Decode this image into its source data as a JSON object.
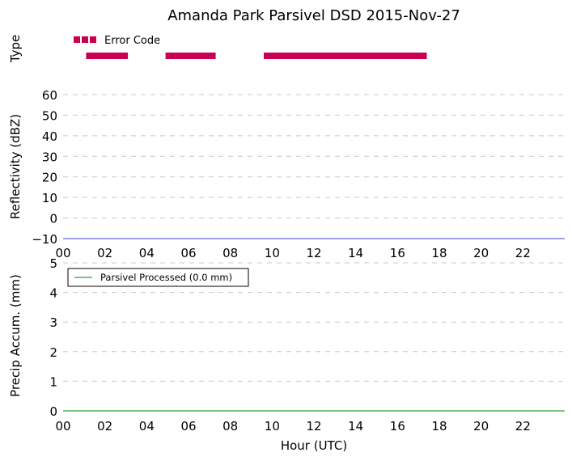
{
  "chart_data": [
    {
      "type": "bar",
      "panel": "type",
      "title": "Amanda Park Parsivel DSD 2015-Nov-27",
      "ylabel": "Type",
      "legend": {
        "label": "Error Code",
        "placement": "top-left"
      },
      "series": [
        {
          "name": "Error Code",
          "color": "#c8004f",
          "segments": [
            [
              1.1,
              3.1
            ],
            [
              4.9,
              7.3
            ],
            [
              9.6,
              17.4
            ]
          ]
        }
      ],
      "xlim": [
        0,
        24
      ]
    },
    {
      "type": "line",
      "panel": "reflectivity",
      "ylabel": "Reflectivity (dBZ)",
      "ylim": [
        -10,
        60
      ],
      "yticks": [
        "−10",
        "0",
        "10",
        "20",
        "30",
        "40",
        "50",
        "60"
      ],
      "ytick_values": [
        -10,
        0,
        10,
        20,
        30,
        40,
        50,
        60
      ],
      "xticks": [
        "00",
        "02",
        "04",
        "06",
        "08",
        "10",
        "12",
        "14",
        "16",
        "18",
        "20",
        "22"
      ],
      "xtick_values": [
        0,
        2,
        4,
        6,
        8,
        10,
        12,
        14,
        16,
        18,
        20,
        22
      ],
      "xlim": [
        0,
        24
      ],
      "grid": "horizontal dashed",
      "series": [
        {
          "color": "#6a6ae0",
          "x": [
            0,
            24
          ],
          "y": [
            -10,
            -10
          ]
        }
      ]
    },
    {
      "type": "line",
      "panel": "precip",
      "ylabel": "Precip Accum. (mm)",
      "xlabel": "Hour (UTC)",
      "ylim": [
        0,
        5
      ],
      "yticks": [
        "0",
        "1",
        "2",
        "3",
        "4",
        "5"
      ],
      "ytick_values": [
        0,
        1,
        2,
        3,
        4,
        5
      ],
      "xticks": [
        "00",
        "02",
        "04",
        "06",
        "08",
        "10",
        "12",
        "14",
        "16",
        "18",
        "20",
        "22"
      ],
      "xtick_values": [
        0,
        2,
        4,
        6,
        8,
        10,
        12,
        14,
        16,
        18,
        20,
        22
      ],
      "xlim": [
        0,
        24
      ],
      "grid": "horizontal dashed",
      "legend": {
        "label": "Parsivel Processed (0.0 mm)",
        "placement": "top-left"
      },
      "series": [
        {
          "name": "Parsivel Processed (0.0 mm)",
          "color": "#2ca02c",
          "x": [
            0,
            24
          ],
          "y": [
            0,
            0
          ]
        }
      ]
    }
  ]
}
